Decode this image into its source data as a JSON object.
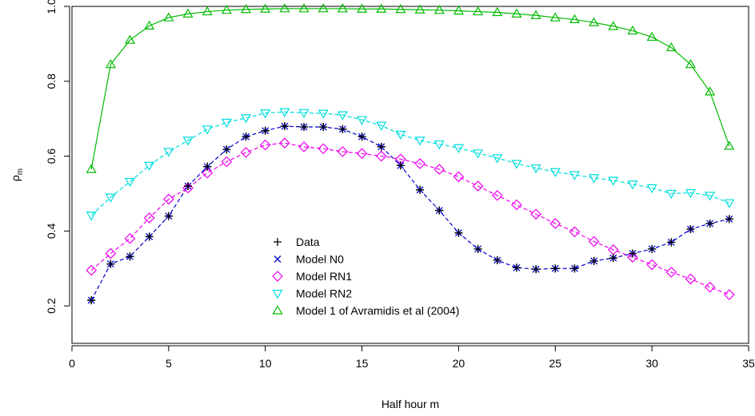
{
  "chart_data": {
    "type": "line",
    "title": "",
    "xlabel": "Half hour m",
    "ylabel": "ρ",
    "ylabel_subscript": "m",
    "xlim": [
      0,
      35
    ],
    "ylim": [
      0.1,
      1.0
    ],
    "xticks": [
      0,
      5,
      10,
      15,
      20,
      25,
      30,
      35
    ],
    "yticks": [
      0.2,
      0.4,
      0.6,
      0.8,
      1.0
    ],
    "ytick_labels": [
      "0.2",
      "0.4",
      "0.6",
      "0.8",
      "1.0"
    ],
    "grid": false,
    "legend_position": "center",
    "x": [
      1,
      2,
      3,
      4,
      5,
      6,
      7,
      8,
      9,
      10,
      11,
      12,
      13,
      14,
      15,
      16,
      17,
      18,
      19,
      20,
      21,
      22,
      23,
      24,
      25,
      26,
      27,
      28,
      29,
      30,
      31,
      32,
      33,
      34
    ],
    "series": [
      {
        "name": "Data",
        "color": "#000000",
        "marker": "plus",
        "line": false,
        "values": [
          0.215,
          0.312,
          0.332,
          0.385,
          0.44,
          0.52,
          0.572,
          0.618,
          0.652,
          0.668,
          0.68,
          0.678,
          0.678,
          0.672,
          0.652,
          0.625,
          0.575,
          0.51,
          0.455,
          0.395,
          0.352,
          0.322,
          0.302,
          0.298,
          0.3,
          0.3,
          0.32,
          0.328,
          0.34,
          0.352,
          0.37,
          0.405,
          0.42,
          0.432
        ]
      },
      {
        "name": "Model N0",
        "color": "#0000cc",
        "marker": "cross",
        "line": true,
        "values": [
          0.215,
          0.312,
          0.332,
          0.385,
          0.44,
          0.52,
          0.572,
          0.618,
          0.652,
          0.668,
          0.68,
          0.678,
          0.678,
          0.672,
          0.652,
          0.625,
          0.575,
          0.51,
          0.455,
          0.395,
          0.352,
          0.322,
          0.302,
          0.298,
          0.3,
          0.3,
          0.32,
          0.328,
          0.34,
          0.352,
          0.37,
          0.405,
          0.42,
          0.432
        ]
      },
      {
        "name": "Model RN1",
        "color": "#ee00ee",
        "marker": "diamond",
        "line": true,
        "values": [
          0.295,
          0.34,
          0.38,
          0.435,
          0.485,
          0.515,
          0.555,
          0.585,
          0.61,
          0.63,
          0.635,
          0.625,
          0.62,
          0.612,
          0.607,
          0.6,
          0.592,
          0.58,
          0.565,
          0.545,
          0.52,
          0.495,
          0.47,
          0.445,
          0.42,
          0.398,
          0.372,
          0.35,
          0.33,
          0.31,
          0.29,
          0.272,
          0.25,
          0.23
        ]
      },
      {
        "name": "Model RN2",
        "color": "#00dddd",
        "marker": "triangle-down",
        "line": true,
        "values": [
          0.442,
          0.49,
          0.532,
          0.575,
          0.612,
          0.642,
          0.672,
          0.69,
          0.702,
          0.715,
          0.718,
          0.716,
          0.714,
          0.71,
          0.697,
          0.682,
          0.658,
          0.642,
          0.632,
          0.622,
          0.608,
          0.595,
          0.58,
          0.568,
          0.558,
          0.55,
          0.542,
          0.535,
          0.525,
          0.515,
          0.5,
          0.502,
          0.495,
          0.475
        ]
      },
      {
        "name": "Model 1 of Avramidis et al (2004)",
        "color": "#00bb00",
        "marker": "triangle-up",
        "line": true,
        "values": [
          0.565,
          0.845,
          0.91,
          0.948,
          0.97,
          0.98,
          0.986,
          0.99,
          0.992,
          0.993,
          0.994,
          0.994,
          0.994,
          0.994,
          0.993,
          0.993,
          0.992,
          0.991,
          0.99,
          0.988,
          0.986,
          0.984,
          0.98,
          0.976,
          0.97,
          0.965,
          0.957,
          0.947,
          0.935,
          0.918,
          0.89,
          0.845,
          0.772,
          0.627
        ]
      }
    ]
  }
}
